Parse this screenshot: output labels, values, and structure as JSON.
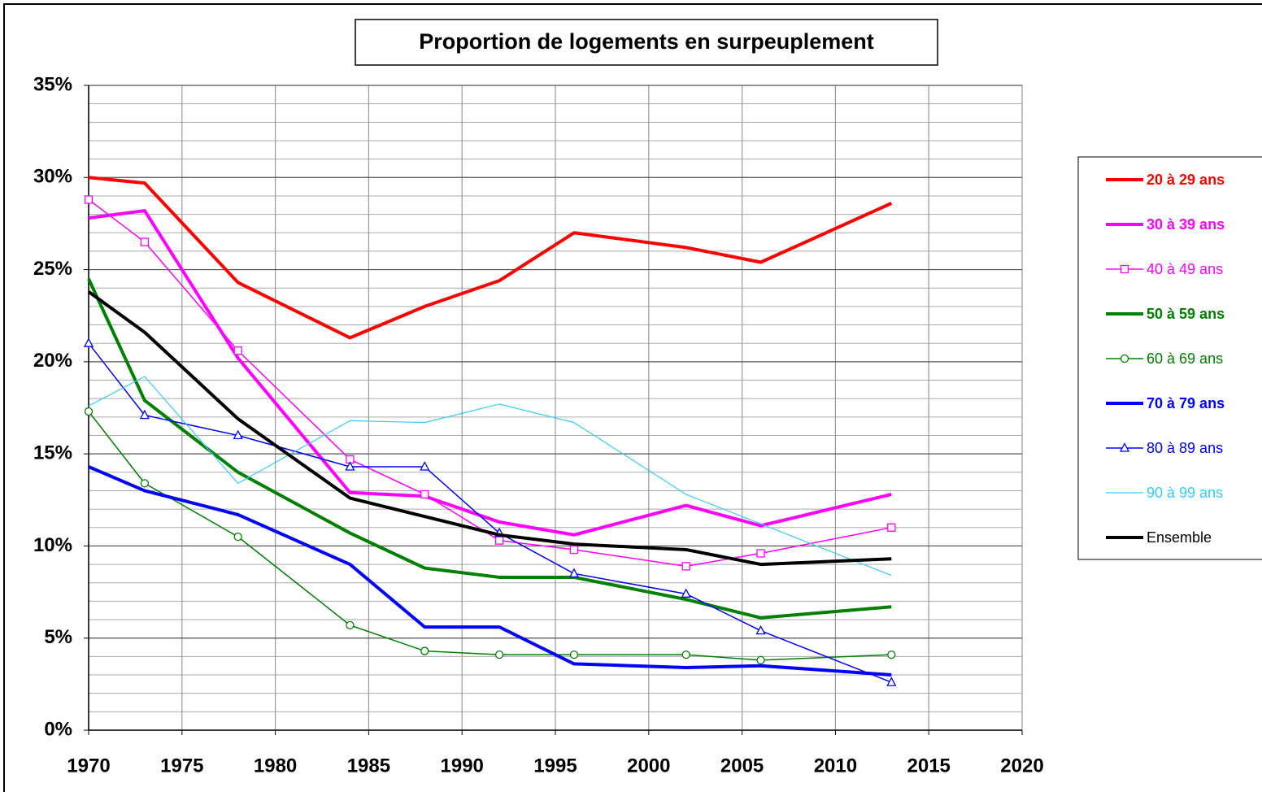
{
  "chart_data": {
    "type": "line",
    "title": "Proportion de logements en surpeuplement",
    "x": [
      1970,
      1973,
      1978,
      1984,
      1988,
      1992,
      1996,
      2002,
      2006,
      2013
    ],
    "series": [
      {
        "name": "20 à 29 ans",
        "color": "#ff0000",
        "width": 4,
        "marker": "none",
        "values": [
          30.0,
          29.7,
          24.3,
          21.3,
          23.0,
          24.4,
          27.0,
          26.2,
          25.4,
          28.6
        ]
      },
      {
        "name": "30 à 39 ans",
        "color": "#ff00ff",
        "width": 4,
        "marker": "none",
        "values": [
          27.8,
          28.2,
          20.2,
          12.9,
          12.7,
          11.3,
          10.6,
          12.2,
          11.1,
          12.8
        ]
      },
      {
        "name": "40 à 49 ans",
        "color": "#ff00ff",
        "width": 1.5,
        "marker": "square",
        "values": [
          28.8,
          26.5,
          20.6,
          14.7,
          12.8,
          10.3,
          9.8,
          8.9,
          9.6,
          11.0
        ]
      },
      {
        "name": "50 à 59 ans",
        "color": "#008000",
        "width": 4,
        "marker": "none",
        "values": [
          24.5,
          17.9,
          14.0,
          10.7,
          8.8,
          8.3,
          8.3,
          7.1,
          6.1,
          6.7
        ]
      },
      {
        "name": "60 à 69 ans",
        "color": "#008000",
        "width": 1.5,
        "marker": "circle",
        "values": [
          17.3,
          13.4,
          10.5,
          5.7,
          4.3,
          4.1,
          4.1,
          4.1,
          3.8,
          4.1
        ]
      },
      {
        "name": "70 à 79 ans",
        "color": "#0000ff",
        "width": 4,
        "marker": "none",
        "values": [
          14.3,
          13.0,
          11.7,
          9.0,
          5.6,
          5.6,
          3.6,
          3.4,
          3.5,
          3.0
        ]
      },
      {
        "name": "80 à 89 ans",
        "color": "#0000ff",
        "width": 1.5,
        "marker": "triangle",
        "values": [
          21.0,
          17.1,
          16.0,
          14.3,
          14.3,
          10.7,
          8.5,
          7.4,
          5.4,
          2.6
        ]
      },
      {
        "name": "90 à 99 ans",
        "color": "#33ccff",
        "width": 1.2,
        "marker": "none",
        "values": [
          17.6,
          19.2,
          13.4,
          16.8,
          16.7,
          17.7,
          16.7,
          12.8,
          11.2,
          8.4
        ]
      },
      {
        "name": "Ensemble",
        "color": "#000000",
        "width": 4,
        "marker": "none",
        "values": [
          23.8,
          21.6,
          16.9,
          12.6,
          11.6,
          10.6,
          10.1,
          9.8,
          9.0,
          9.3
        ]
      }
    ],
    "xlim": [
      1970,
      2020
    ],
    "xticks": [
      1970,
      1975,
      1980,
      1985,
      1990,
      1995,
      2000,
      2005,
      2010,
      2015,
      2020
    ],
    "ylim": [
      0,
      35
    ],
    "yticks": [
      {
        "value": 0,
        "label": "0%"
      },
      {
        "value": 5,
        "label": "5%"
      },
      {
        "value": 10,
        "label": "10%"
      },
      {
        "value": 15,
        "label": "15%"
      },
      {
        "value": 20,
        "label": "20%"
      },
      {
        "value": 25,
        "label": "25%"
      },
      {
        "value": 30,
        "label": "30%"
      },
      {
        "value": 35,
        "label": "35%"
      }
    ],
    "grid": true,
    "minor_grid_step": 1,
    "legend": "right"
  }
}
